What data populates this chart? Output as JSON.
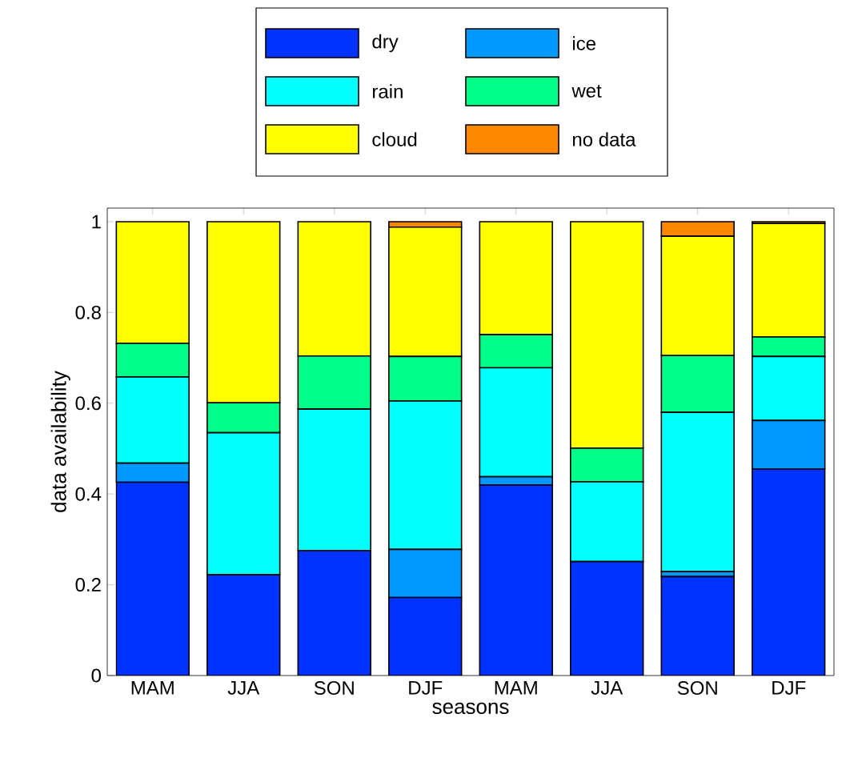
{
  "chart_data": {
    "type": "bar",
    "stacked": true,
    "xlabel": "seasons",
    "ylabel": "data availability",
    "categories": [
      "MAM",
      "JJA",
      "SON",
      "DJF",
      "MAM",
      "JJA",
      "SON",
      "DJF"
    ],
    "series": [
      {
        "name": "dry",
        "color": "#0033ff",
        "values": [
          0.426,
          0.222,
          0.275,
          0.172,
          0.42,
          0.251,
          0.218,
          0.455
        ]
      },
      {
        "name": "ice",
        "color": "#0099ff",
        "values": [
          0.042,
          0,
          0,
          0.106,
          0.018,
          0,
          0.011,
          0.107
        ]
      },
      {
        "name": "rain",
        "color": "#00ffff",
        "values": [
          0.19,
          0.313,
          0.312,
          0.327,
          0.24,
          0.176,
          0.351,
          0.141
        ]
      },
      {
        "name": "wet",
        "color": "#00ff88",
        "values": [
          0.074,
          0.066,
          0.117,
          0.098,
          0.073,
          0.074,
          0.125,
          0.043
        ]
      },
      {
        "name": "cloud",
        "color": "#ffff00",
        "values": [
          0.268,
          0.399,
          0.296,
          0.285,
          0.249,
          0.499,
          0.263,
          0.25
        ]
      },
      {
        "name": "no data",
        "color": "#ff8800",
        "values": [
          0,
          0,
          0,
          0.012,
          0,
          0,
          0.032,
          0.004
        ]
      }
    ],
    "ylim": [
      0,
      1.03
    ],
    "yticks": [
      0,
      {
        "value": 0.2,
        "label": "0.2"
      },
      {
        "value": 0.4,
        "label": "0.4"
      },
      {
        "value": 0.6,
        "label": "0.6"
      },
      {
        "value": 0.8,
        "label": "0.8"
      },
      1
    ],
    "legend": "top",
    "grid": false
  }
}
